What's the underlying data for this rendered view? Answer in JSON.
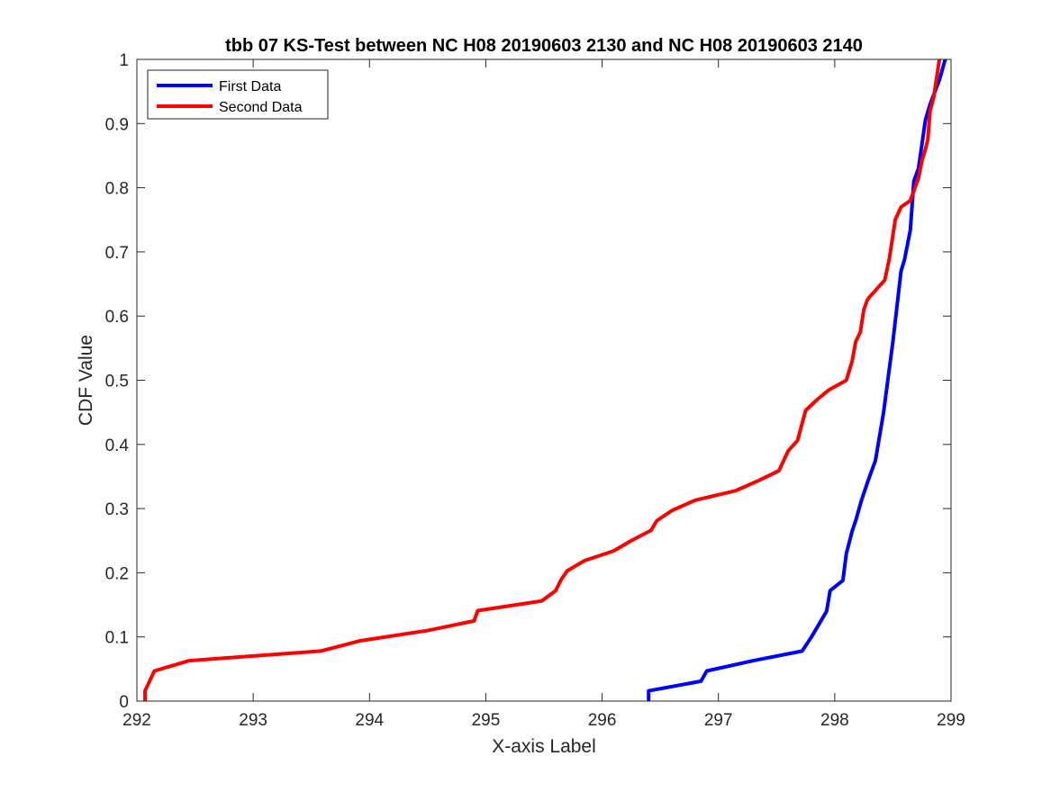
{
  "chart_data": {
    "type": "line",
    "title": "tbb 07 KS-Test between NC H08 20190603 2130 and NC H08 20190603 2140",
    "xlabel": "X-axis Label",
    "ylabel": "CDF Value",
    "xlim": [
      292,
      299
    ],
    "ylim": [
      0,
      1
    ],
    "xticks": [
      "292",
      "293",
      "294",
      "295",
      "296",
      "297",
      "298",
      "299"
    ],
    "yticks": [
      "0",
      "0.1",
      "0.2",
      "0.3",
      "0.4",
      "0.5",
      "0.6",
      "0.7",
      "0.8",
      "0.9",
      "1"
    ],
    "grid": false,
    "legend_location": "top-left",
    "series": [
      {
        "name": "First Data",
        "color": "#0000ff",
        "x": [
          296.4,
          296.4,
          296.85,
          296.9,
          297.3,
          297.72,
          297.8,
          297.93,
          297.96,
          298.07,
          298.1,
          298.15,
          298.18,
          298.23,
          298.28,
          298.35,
          298.42,
          298.5,
          298.57,
          298.6,
          298.65,
          298.68,
          298.72,
          298.78,
          298.82,
          298.9,
          298.95
        ],
        "y": [
          0.0,
          0.016,
          0.031,
          0.047,
          0.063,
          0.078,
          0.1,
          0.14,
          0.172,
          0.188,
          0.23,
          0.265,
          0.281,
          0.313,
          0.34,
          0.375,
          0.45,
          0.56,
          0.67,
          0.688,
          0.734,
          0.81,
          0.83,
          0.906,
          0.93,
          0.968,
          1.0
        ]
      },
      {
        "name": "Second Data",
        "color": "#ff0000",
        "x": [
          292.07,
          292.07,
          292.15,
          292.45,
          293.58,
          293.92,
          294.5,
          294.9,
          294.93,
          295.48,
          295.6,
          295.65,
          295.7,
          295.85,
          296.1,
          296.25,
          296.42,
          296.47,
          296.6,
          296.8,
          297.15,
          297.35,
          297.52,
          297.6,
          297.68,
          297.75,
          297.85,
          297.95,
          298.1,
          298.15,
          298.18,
          298.22,
          298.25,
          298.28,
          298.3,
          298.35,
          298.43,
          298.47,
          298.52,
          298.57,
          298.65,
          298.72,
          298.75,
          298.78,
          298.8,
          298.82,
          298.85,
          298.9
        ],
        "y": [
          0.0,
          0.016,
          0.047,
          0.063,
          0.078,
          0.094,
          0.11,
          0.125,
          0.141,
          0.156,
          0.172,
          0.19,
          0.203,
          0.219,
          0.234,
          0.25,
          0.266,
          0.281,
          0.297,
          0.313,
          0.328,
          0.344,
          0.359,
          0.39,
          0.406,
          0.453,
          0.47,
          0.485,
          0.5,
          0.53,
          0.56,
          0.575,
          0.61,
          0.625,
          0.63,
          0.64,
          0.656,
          0.69,
          0.75,
          0.77,
          0.78,
          0.815,
          0.842,
          0.86,
          0.875,
          0.92,
          0.94,
          1.0
        ]
      }
    ]
  }
}
